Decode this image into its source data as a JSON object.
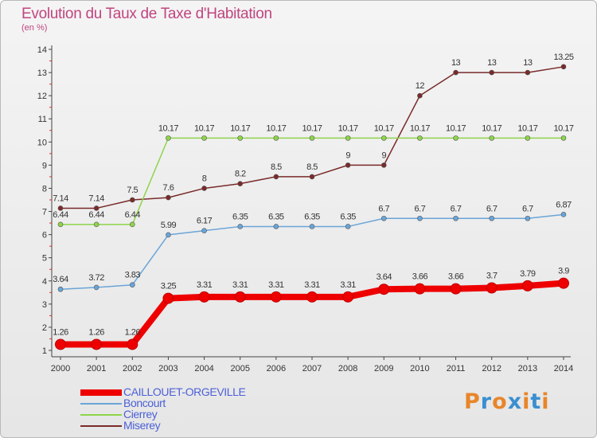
{
  "title": "Evolution du Taux de Taxe d'Habitation",
  "subtitle": "(en %)",
  "logo": {
    "text": "Proxiti",
    "colors": [
      "#e8862a",
      "#3a8fd0",
      "#e8862a",
      "#3a8fd0",
      "#e8862a",
      "#3a8fd0",
      "#e8862a"
    ]
  },
  "chart_data": {
    "type": "line",
    "x": [
      "2000",
      "2001",
      "2002",
      "2003",
      "2004",
      "2005",
      "2006",
      "2007",
      "2008",
      "2009",
      "2010",
      "2011",
      "2012",
      "2013",
      "2014"
    ],
    "ylim": [
      1,
      14
    ],
    "yticks": [
      "1",
      "2",
      "3",
      "4",
      "5",
      "6",
      "7",
      "8",
      "9",
      "10",
      "11",
      "12",
      "13",
      "14"
    ],
    "grid": false,
    "series": [
      {
        "name": "Miserey",
        "color": "#7a2a2a",
        "width": 1.5,
        "values": [
          7.14,
          7.14,
          7.5,
          7.6,
          8,
          8.2,
          8.5,
          8.5,
          9,
          9,
          12,
          13,
          13,
          13,
          13.25
        ],
        "labels": [
          "7.14",
          "7.14",
          "7.5",
          "7.6",
          "8",
          "8.2",
          "8.5",
          "8.5",
          "9",
          "9",
          "12",
          "13",
          "13",
          "13",
          "13.25"
        ]
      },
      {
        "name": "Cierrey",
        "color": "#8fd44a",
        "width": 1.5,
        "values": [
          6.44,
          6.44,
          6.44,
          10.17,
          10.17,
          10.17,
          10.17,
          10.17,
          10.17,
          10.17,
          10.17,
          10.17,
          10.17,
          10.17,
          10.17
        ],
        "labels": [
          "6.44",
          "6.44",
          "6.44",
          "10.17",
          "10.17",
          "10.17",
          "10.17",
          "10.17",
          "10.17",
          "10.17",
          "10.17",
          "10.17",
          "10.17",
          "10.17",
          "10.17"
        ]
      },
      {
        "name": "Boncourt",
        "color": "#6aa5d8",
        "width": 1.5,
        "values": [
          3.64,
          3.72,
          3.83,
          5.99,
          6.17,
          6.35,
          6.35,
          6.35,
          6.35,
          6.7,
          6.7,
          6.7,
          6.7,
          6.7,
          6.87
        ],
        "labels": [
          "3.64",
          "3.72",
          "3.83",
          "5.99",
          "6.17",
          "6.35",
          "6.35",
          "6.35",
          "6.35",
          "6.7",
          "6.7",
          "6.7",
          "6.7",
          "6.7",
          "6.87"
        ]
      },
      {
        "name": "CAILLOUET-ORGEVILLE",
        "color": "#ee0000",
        "width": 8,
        "values": [
          1.26,
          1.26,
          1.26,
          3.25,
          3.31,
          3.31,
          3.31,
          3.31,
          3.31,
          3.64,
          3.66,
          3.66,
          3.7,
          3.79,
          3.9
        ],
        "labels": [
          "1.26",
          "1.26",
          "1.26",
          "3.25",
          "3.31",
          "3.31",
          "3.31",
          "3.31",
          "3.31",
          "3.64",
          "3.66",
          "3.66",
          "3.7",
          "3.79",
          "3.9"
        ]
      }
    ],
    "legend": [
      {
        "name": "CAILLOUET-ORGEVILLE",
        "color": "#ee0000"
      },
      {
        "name": "Boncourt",
        "color": "#6aa5d8"
      },
      {
        "name": "Cierrey",
        "color": "#8fd44a"
      },
      {
        "name": "Miserey",
        "color": "#7a2a2a"
      }
    ]
  }
}
